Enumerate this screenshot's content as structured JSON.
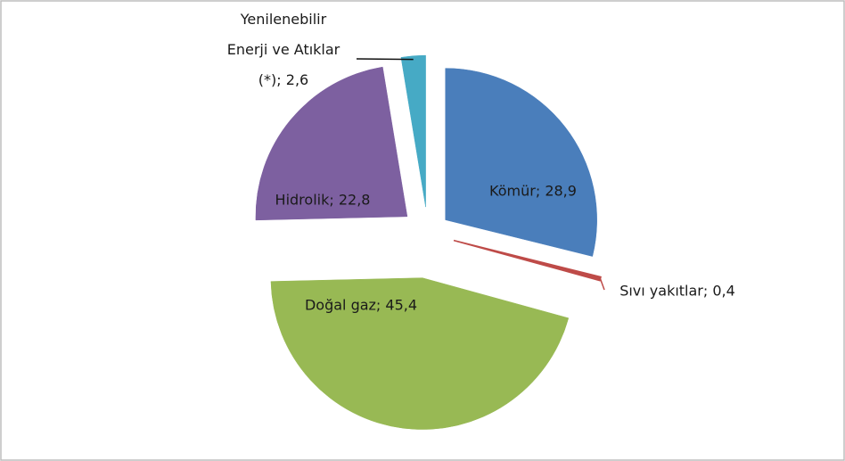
{
  "chart_data": {
    "type": "pie",
    "values": [
      28.9,
      0.4,
      45.4,
      22.8,
      2.6
    ],
    "value_labels": [
      "Kömür; 28,9",
      "Sıvı yakıtlar; 0,4",
      "Doğal gaz; 45,4",
      "Hidrolik; 22,8",
      "Yenilenebilir\nEnerji ve Atıklar\n(*); 2,6"
    ],
    "colors": [
      "#4a7ebb",
      "#be4b48",
      "#98b954",
      "#7d60a0",
      "#46aac5"
    ]
  }
}
